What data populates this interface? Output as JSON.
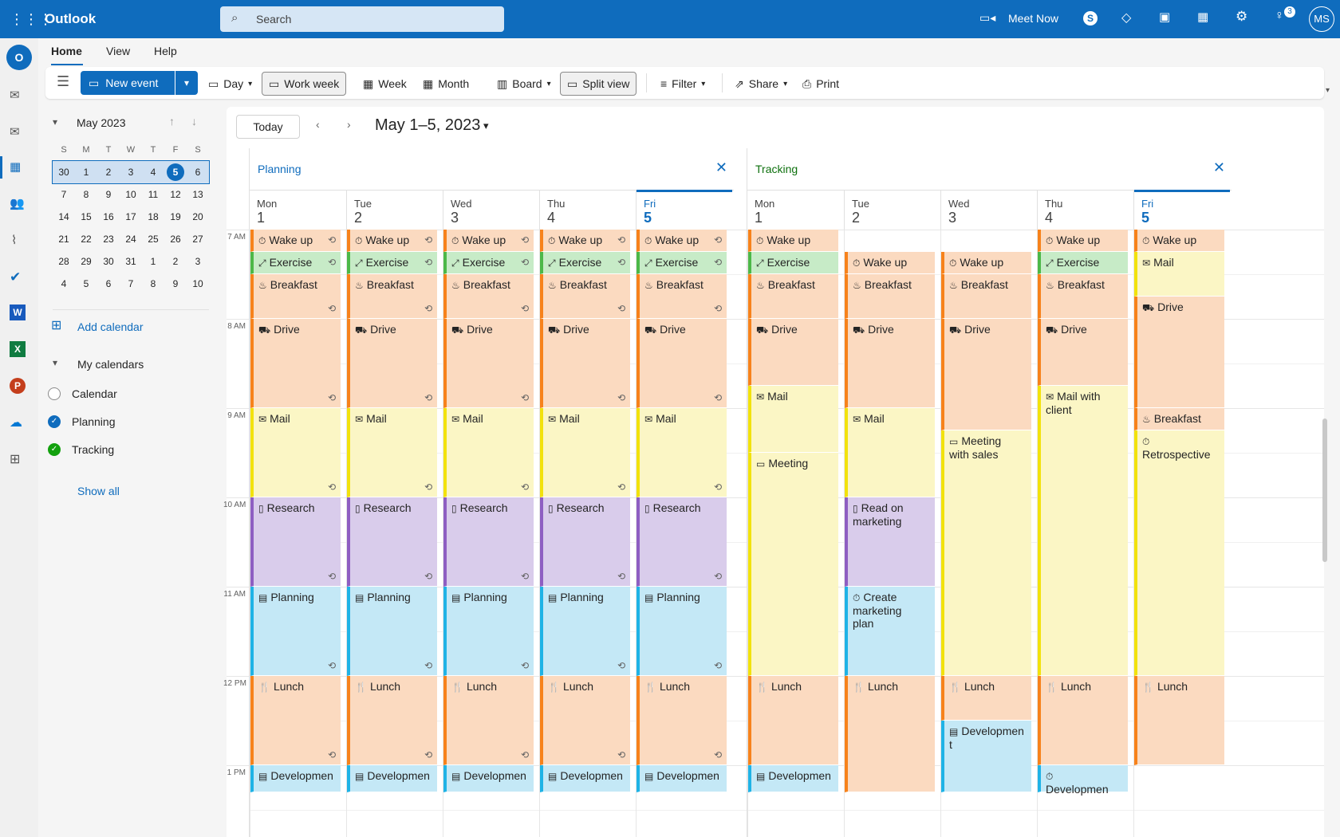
{
  "topbar": {
    "app_name": "Outlook",
    "search_placeholder": "Search",
    "meet_now": "Meet Now",
    "notif_count": "3",
    "avatar": "MS"
  },
  "tabs": [
    "Home",
    "View",
    "Help"
  ],
  "ribbon": {
    "new_event": "New event",
    "day": "Day",
    "work_week": "Work week",
    "week": "Week",
    "month": "Month",
    "board": "Board",
    "split_view": "Split view",
    "filter": "Filter",
    "share": "Share",
    "print": "Print"
  },
  "mini_cal": {
    "title": "May 2023",
    "weekdays": [
      "S",
      "M",
      "T",
      "W",
      "T",
      "F",
      "S"
    ],
    "weeks": [
      [
        "30",
        "1",
        "2",
        "3",
        "4",
        "5",
        "6"
      ],
      [
        "7",
        "8",
        "9",
        "10",
        "11",
        "12",
        "13"
      ],
      [
        "14",
        "15",
        "16",
        "17",
        "18",
        "19",
        "20"
      ],
      [
        "21",
        "22",
        "23",
        "24",
        "25",
        "26",
        "27"
      ],
      [
        "28",
        "29",
        "30",
        "31",
        "1",
        "2",
        "3"
      ],
      [
        "4",
        "5",
        "6",
        "7",
        "8",
        "9",
        "10"
      ]
    ]
  },
  "left": {
    "add_calendar": "Add calendar",
    "my_calendars": "My calendars",
    "calendars": [
      {
        "name": "Calendar",
        "state": "none"
      },
      {
        "name": "Planning",
        "state": "blue"
      },
      {
        "name": "Tracking",
        "state": "green"
      }
    ],
    "show_all": "Show all"
  },
  "toolbar": {
    "today": "Today",
    "range": "May 1–5, 2023"
  },
  "times": [
    "7 AM",
    "8 AM",
    "9 AM",
    "10 AM",
    "11 AM",
    "12 PM",
    "1 PM"
  ],
  "panes": [
    {
      "title": "Planning",
      "title_color": "#0f6cbd",
      "days": [
        {
          "dow": "Mon",
          "num": "1"
        },
        {
          "dow": "Tue",
          "num": "2"
        },
        {
          "dow": "Wed",
          "num": "3"
        },
        {
          "dow": "Thu",
          "num": "4"
        },
        {
          "dow": "Fri",
          "num": "5",
          "today": true
        }
      ],
      "events": []
    },
    {
      "title": "Tracking",
      "title_color": "#0e700e",
      "days": [
        {
          "dow": "Mon",
          "num": "1"
        },
        {
          "dow": "Tue",
          "num": "2"
        },
        {
          "dow": "Wed",
          "num": "3"
        },
        {
          "dow": "Thu",
          "num": "4"
        },
        {
          "dow": "Fri",
          "num": "5",
          "today": true
        }
      ],
      "events": []
    }
  ],
  "colors": {
    "orange": {
      "bg": "#fbdac0",
      "bar": "#f7821b"
    },
    "green": {
      "bg": "#c7ebc7",
      "bar": "#4cb848"
    },
    "yellow": {
      "bg": "#fbf6c5",
      "bar": "#f2e20c"
    },
    "purple": {
      "bg": "#d9cceb",
      "bar": "#8e5ec2"
    },
    "blue": {
      "bg": "#c4e8f6",
      "bar": "#1fb3e6"
    },
    "accent": "#0f6cbd"
  },
  "planning_events": [
    {
      "label": "Wake up",
      "icon": "⏱",
      "color": "orange",
      "start": 7.0,
      "end": 7.25,
      "rep": "top"
    },
    {
      "label": "Exercise",
      "icon": "⤢",
      "color": "green",
      "start": 7.25,
      "end": 7.5,
      "rep": "top"
    },
    {
      "label": "Breakfast",
      "icon": "♨",
      "color": "orange",
      "start": 7.5,
      "end": 8.0,
      "rep": "bottom"
    },
    {
      "label": "Drive",
      "icon": "⛟",
      "color": "orange",
      "start": 8.0,
      "end": 9.0,
      "rep": "bottom"
    },
    {
      "label": "Mail",
      "icon": "✉",
      "color": "yellow",
      "start": 9.0,
      "end": 10.0,
      "rep": "bottom"
    },
    {
      "label": "Research",
      "icon": "▯",
      "color": "purple",
      "start": 10.0,
      "end": 11.0,
      "rep": "bottom"
    },
    {
      "label": "Planning",
      "icon": "▤",
      "color": "blue",
      "start": 11.0,
      "end": 12.0,
      "rep": "bottom"
    },
    {
      "label": "Lunch",
      "icon": "🍴",
      "color": "orange",
      "start": 12.0,
      "end": 13.0,
      "rep": "bottom"
    },
    {
      "label": "Developmen",
      "icon": "▤",
      "color": "blue",
      "start": 13.0,
      "end": 13.3,
      "rep": "none"
    }
  ],
  "tracking_events": [
    [
      {
        "label": "Wake up",
        "icon": "⏱",
        "color": "orange",
        "start": 7.0,
        "end": 7.25
      },
      {
        "label": "Exercise",
        "icon": "⤢",
        "color": "green",
        "start": 7.25,
        "end": 7.5
      },
      {
        "label": "Breakfast",
        "icon": "♨",
        "color": "orange",
        "start": 7.5,
        "end": 8.0
      },
      {
        "label": "Drive",
        "icon": "⛟",
        "color": "orange",
        "start": 8.0,
        "end": 8.75
      },
      {
        "label": "Mail",
        "icon": "✉",
        "color": "yellow",
        "start": 8.75,
        "end": 9.5
      },
      {
        "label": "Meeting",
        "icon": "▭",
        "color": "yellow",
        "start": 9.5,
        "end": 12.0
      },
      {
        "label": "Lunch",
        "icon": "🍴",
        "color": "orange",
        "start": 12.0,
        "end": 13.0
      },
      {
        "label": "Developmen",
        "icon": "▤",
        "color": "blue",
        "start": 13.0,
        "end": 13.3
      }
    ],
    [
      {
        "label": "Wake up",
        "icon": "⏱",
        "color": "orange",
        "start": 7.25,
        "end": 7.5
      },
      {
        "label": "Breakfast",
        "icon": "♨",
        "color": "orange",
        "start": 7.5,
        "end": 8.0
      },
      {
        "label": "Drive",
        "icon": "⛟",
        "color": "orange",
        "start": 8.0,
        "end": 9.0
      },
      {
        "label": "Mail",
        "icon": "✉",
        "color": "yellow",
        "start": 9.0,
        "end": 10.0
      },
      {
        "label": "Read on marketing",
        "icon": "▯",
        "color": "purple",
        "start": 10.0,
        "end": 11.0
      },
      {
        "label": "Create marketing plan",
        "icon": "⏱",
        "color": "blue",
        "start": 11.0,
        "end": 12.0
      },
      {
        "label": "Lunch",
        "icon": "🍴",
        "color": "orange",
        "start": 12.0,
        "end": 13.3
      }
    ],
    [
      {
        "label": "Wake up",
        "icon": "⏱",
        "color": "orange",
        "start": 7.25,
        "end": 7.5
      },
      {
        "label": "Breakfast",
        "icon": "♨",
        "color": "orange",
        "start": 7.5,
        "end": 8.0
      },
      {
        "label": "Drive",
        "icon": "⛟",
        "color": "orange",
        "start": 8.0,
        "end": 9.25
      },
      {
        "label": "Meeting with sales",
        "icon": "▭",
        "color": "yellow",
        "start": 9.25,
        "end": 12.0
      },
      {
        "label": "Lunch",
        "icon": "🍴",
        "color": "orange",
        "start": 12.0,
        "end": 12.5
      },
      {
        "label": "Developmen t",
        "icon": "▤",
        "color": "blue",
        "start": 12.5,
        "end": 13.3
      }
    ],
    [
      {
        "label": "Wake up",
        "icon": "⏱",
        "color": "orange",
        "start": 7.0,
        "end": 7.25
      },
      {
        "label": "Exercise",
        "icon": "⤢",
        "color": "green",
        "start": 7.25,
        "end": 7.5
      },
      {
        "label": "Breakfast",
        "icon": "♨",
        "color": "orange",
        "start": 7.5,
        "end": 8.0
      },
      {
        "label": "Drive",
        "icon": "⛟",
        "color": "orange",
        "start": 8.0,
        "end": 8.75
      },
      {
        "label": "Mail with client",
        "icon": "✉",
        "color": "yellow",
        "start": 8.75,
        "end": 12.0
      },
      {
        "label": "Lunch",
        "icon": "🍴",
        "color": "orange",
        "start": 12.0,
        "end": 13.0
      },
      {
        "label": "Developmen",
        "icon": "⏱",
        "color": "blue",
        "start": 13.0,
        "end": 13.3
      }
    ],
    [
      {
        "label": "Wake up",
        "icon": "⏱",
        "color": "orange",
        "start": 7.0,
        "end": 7.25
      },
      {
        "label": "Mail",
        "icon": "✉",
        "color": "yellow",
        "start": 7.25,
        "end": 7.75
      },
      {
        "label": "Drive",
        "icon": "⛟",
        "color": "orange",
        "start": 7.75,
        "end": 9.0
      },
      {
        "label": "Breakfast",
        "icon": "♨",
        "color": "orange",
        "start": 9.0,
        "end": 9.25
      },
      {
        "label": "Retrospective",
        "icon": "⏱",
        "color": "yellow",
        "start": 9.25,
        "end": 12.0
      },
      {
        "label": "Lunch",
        "icon": "🍴",
        "color": "orange",
        "start": 12.0,
        "end": 13.0
      }
    ]
  ]
}
